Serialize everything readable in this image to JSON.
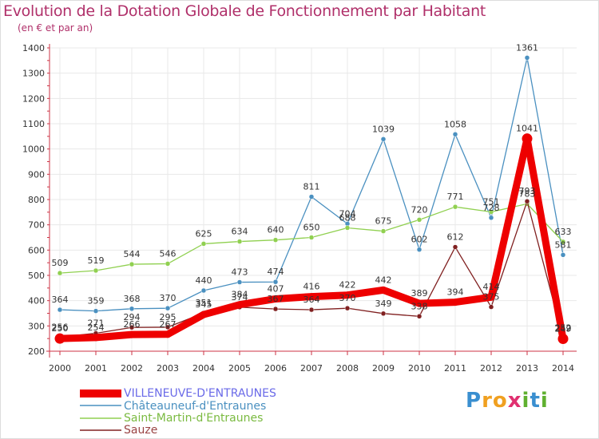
{
  "chart_data": {
    "type": "line",
    "title": "Evolution de la Dotation Globale de Fonctionnement par Habitant",
    "subtitle": "(en € et par an)",
    "x": [
      "2000",
      "2001",
      "2002",
      "2003",
      "2004",
      "2005",
      "2006",
      "2007",
      "2008",
      "2009",
      "2010",
      "2011",
      "2012",
      "2013",
      "2014"
    ],
    "yticks": [
      "200",
      "300",
      "400",
      "500",
      "600",
      "700",
      "800",
      "900",
      "1000",
      "1100",
      "1200",
      "1300",
      "1400"
    ],
    "ylim": [
      200,
      1400
    ],
    "grid": true,
    "series": [
      {
        "name": "Châteauneuf-d'Entraunes",
        "color": "#4a90c0",
        "values": [
          364,
          359,
          368,
          370,
          440,
          473,
          474,
          811,
          704,
          1039,
          602,
          1058,
          728,
          1361,
          581
        ],
        "labels": [
          "364",
          "359",
          "368",
          "370",
          "440",
          "473",
          "474",
          "811",
          "704",
          "1039",
          "602",
          "1058",
          "728",
          "1361",
          "581"
        ]
      },
      {
        "name": "Saint-Martin-d'Entraunes",
        "color": "#90d050",
        "values": [
          509,
          519,
          544,
          546,
          625,
          634,
          640,
          650,
          688,
          675,
          720,
          771,
          751,
          783,
          633
        ],
        "labels": [
          "509",
          "519",
          "544",
          "546",
          "625",
          "634",
          "640",
          "650",
          "688",
          "675",
          "720",
          "771",
          "751",
          "783",
          "633"
        ]
      },
      {
        "name": "Sauze",
        "color": "#802020",
        "values": [
          256,
          271,
          294,
          295,
          351,
          374,
          367,
          364,
          370,
          349,
          338,
          612,
          375,
          793,
          252
        ],
        "labels": [
          "256",
          "271",
          "294",
          "295",
          "351",
          "374",
          "367",
          "364",
          "370",
          "349",
          "338",
          "612",
          "375",
          "793",
          "252"
        ]
      },
      {
        "name": "VILLENEUVE-D'ENTRAUNES",
        "color": "#ee0000",
        "values": [
          250,
          254,
          266,
          267,
          345,
          384,
          407,
          416,
          422,
          442,
          389,
          394,
          414,
          1041,
          249
        ],
        "labels": [
          "250",
          "254",
          "266",
          "267",
          "345",
          "384",
          "407",
          "416",
          "422",
          "442",
          "389",
          "394",
          "414",
          "1041",
          "249"
        ]
      }
    ]
  },
  "legend": {
    "villeneuve": "VILLENEUVE-D'ENTRAUNES",
    "chateauneuf": "Châteauneuf-d'Entraunes",
    "saintmartin": "Saint-Martin-d'Entraunes",
    "sauze": "Sauze"
  },
  "logo": {
    "chars": [
      "P",
      "r",
      "o",
      "x",
      "i",
      "t",
      "i"
    ]
  },
  "colors": {
    "title": "#b0306a",
    "axis": "#cc3344",
    "villeneuve": "#ee0000",
    "chateauneuf": "#4a90c0",
    "saintmartin": "#90d050",
    "sauze": "#802020"
  }
}
